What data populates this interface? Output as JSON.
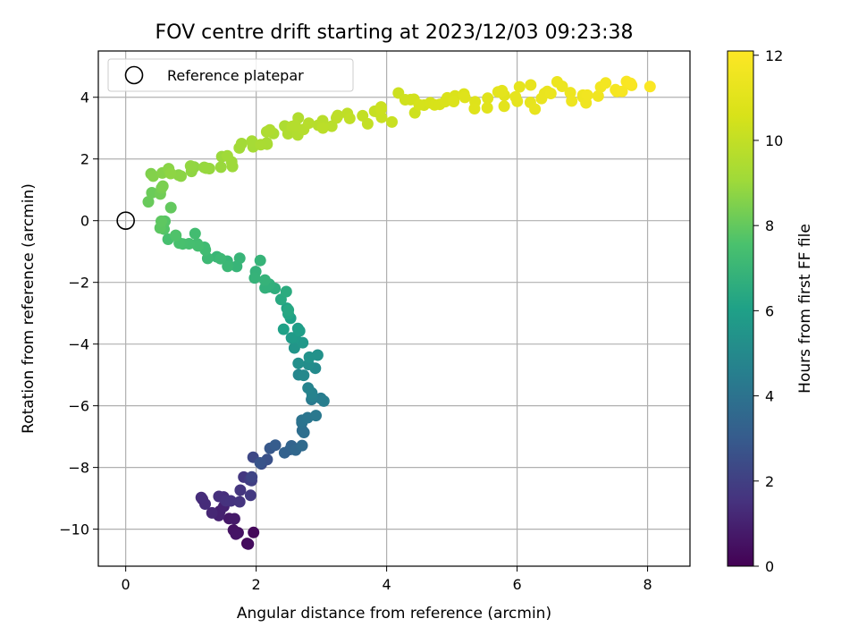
{
  "chart_data": {
    "type": "scatter",
    "title": "FOV centre drift starting at 2023/12/03 09:23:38",
    "xlabel": "Angular distance from reference (arcmin)",
    "ylabel": "Rotation from reference (arcmin)",
    "xlim": [
      -0.42,
      8.65
    ],
    "ylim": [
      -11.2,
      5.5
    ],
    "xticks": [
      0,
      2,
      4,
      6,
      8
    ],
    "yticks": [
      -10,
      -8,
      -6,
      -4,
      -2,
      0,
      2,
      4
    ],
    "grid": true,
    "legend": {
      "placement": "upper-left",
      "entries": [
        "Reference platepar"
      ]
    },
    "reference_point": {
      "x": 0,
      "y": 0
    },
    "colorbar": {
      "label": "Hours from first FF file",
      "range": [
        0,
        12.1
      ],
      "ticks": [
        0,
        2,
        4,
        6,
        8,
        10,
        12
      ],
      "colormap": "viridis"
    },
    "drift_path": [
      {
        "x": 1.9,
        "y": -10.3,
        "h": 0.0
      },
      {
        "x": 1.85,
        "y": -10.1,
        "h": 0.4
      },
      {
        "x": 1.25,
        "y": -9.1,
        "h": 1.3
      },
      {
        "x": 1.95,
        "y": -8.5,
        "h": 1.8
      },
      {
        "x": 2.0,
        "y": -7.9,
        "h": 2.4
      },
      {
        "x": 2.3,
        "y": -7.6,
        "h": 3.0
      },
      {
        "x": 2.6,
        "y": -7.05,
        "h": 3.6
      },
      {
        "x": 2.8,
        "y": -6.3,
        "h": 4.1
      },
      {
        "x": 2.9,
        "y": -5.9,
        "h": 4.4
      },
      {
        "x": 2.8,
        "y": -5.2,
        "h": 4.8
      },
      {
        "x": 2.75,
        "y": -4.4,
        "h": 5.3
      },
      {
        "x": 2.65,
        "y": -3.8,
        "h": 5.7
      },
      {
        "x": 2.4,
        "y": -3.1,
        "h": 6.1
      },
      {
        "x": 2.35,
        "y": -2.4,
        "h": 6.5
      },
      {
        "x": 2.05,
        "y": -1.9,
        "h": 6.8
      },
      {
        "x": 1.6,
        "y": -1.3,
        "h": 7.0
      },
      {
        "x": 1.2,
        "y": -0.9,
        "h": 7.3
      },
      {
        "x": 0.8,
        "y": -0.6,
        "h": 7.5
      },
      {
        "x": 0.55,
        "y": 0.2,
        "h": 7.9
      },
      {
        "x": 0.45,
        "y": 1.0,
        "h": 8.3
      },
      {
        "x": 0.5,
        "y": 1.6,
        "h": 8.6
      },
      {
        "x": 1.0,
        "y": 1.55,
        "h": 8.8
      },
      {
        "x": 1.5,
        "y": 1.9,
        "h": 9.0
      },
      {
        "x": 2.05,
        "y": 2.5,
        "h": 9.3
      },
      {
        "x": 2.4,
        "y": 3.0,
        "h": 9.5
      },
      {
        "x": 3.2,
        "y": 3.3,
        "h": 9.8
      },
      {
        "x": 4.0,
        "y": 3.6,
        "h": 10.2
      },
      {
        "x": 4.8,
        "y": 3.8,
        "h": 10.6
      },
      {
        "x": 5.6,
        "y": 3.95,
        "h": 11.0
      },
      {
        "x": 6.4,
        "y": 4.15,
        "h": 11.3
      },
      {
        "x": 7.2,
        "y": 4.2,
        "h": 11.6
      },
      {
        "x": 8.0,
        "y": 4.45,
        "h": 12.0
      }
    ]
  }
}
